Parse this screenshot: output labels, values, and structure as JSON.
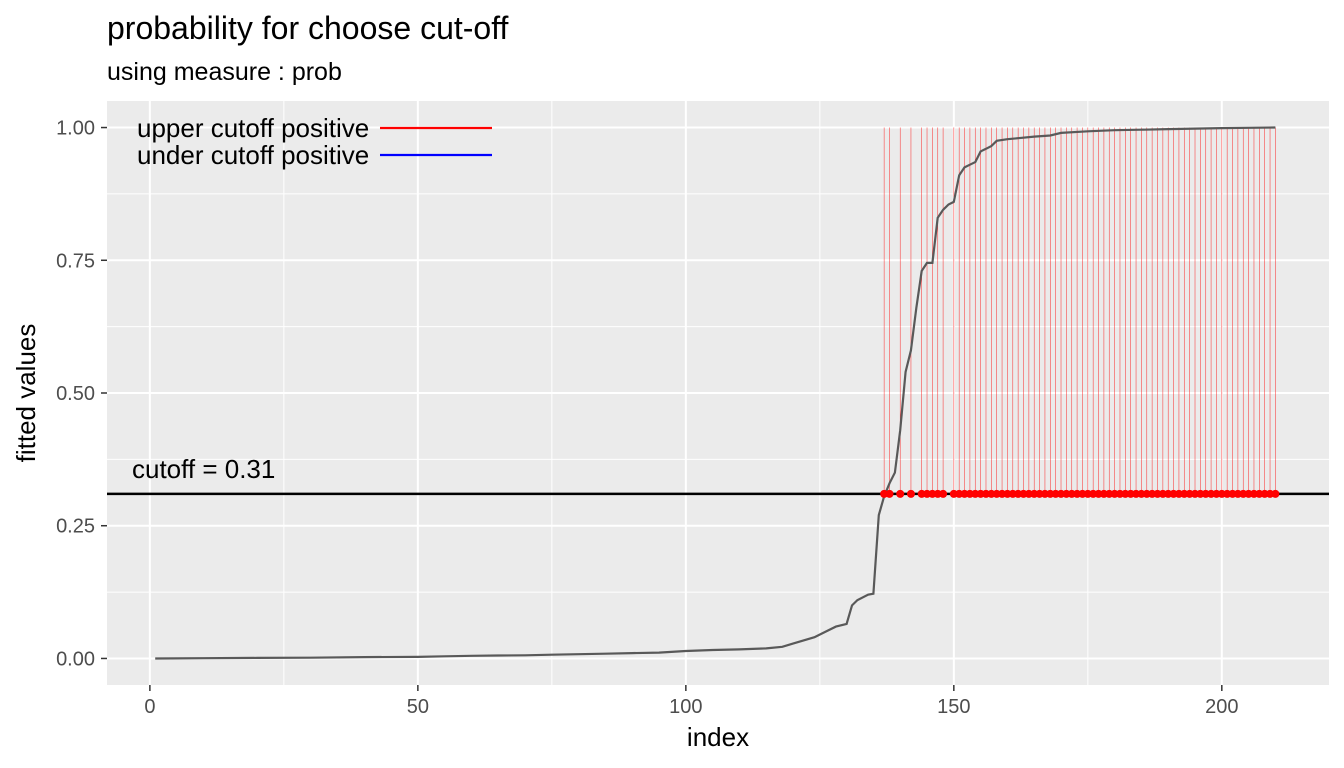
{
  "chart_data": {
    "type": "line",
    "title": "probability for choose cut-off",
    "subtitle": "using measure : prob",
    "xlabel": "index",
    "ylabel": "fitted values",
    "xlim": [
      -8,
      220
    ],
    "ylim": [
      -0.05,
      1.05
    ],
    "x_ticks": [
      0,
      50,
      100,
      150,
      200
    ],
    "y_ticks": [
      0.0,
      0.25,
      0.5,
      0.75,
      1.0
    ],
    "x_tick_labels": [
      "0",
      "50",
      "100",
      "150",
      "200"
    ],
    "y_tick_labels": [
      "0.00",
      "0.25",
      "0.50",
      "0.75",
      "1.00"
    ],
    "grid": true,
    "legend_placement": "top-left",
    "legend": [
      {
        "label": "upper cutoff positive",
        "color": "#ff0000"
      },
      {
        "label": "under cutoff positive",
        "color": "#0000ff"
      }
    ],
    "cutoff": {
      "value": 0.31,
      "label": "cutoff = 0.31",
      "color": "#000000"
    },
    "line_color": "#595959",
    "marker_color": "#ff0000",
    "series": [
      {
        "x": [
          1,
          10,
          20,
          30,
          40,
          50,
          55,
          60,
          65,
          70,
          75,
          80,
          85,
          90,
          95,
          100,
          105,
          110,
          115,
          118,
          120,
          124,
          126,
          128,
          130,
          131,
          132,
          134,
          135,
          136,
          137,
          138,
          139,
          140,
          141,
          142,
          143,
          144,
          145,
          146,
          147,
          148,
          149,
          150,
          151,
          152,
          153,
          154,
          155,
          156,
          157,
          158,
          160,
          162,
          165,
          168,
          170,
          175,
          180,
          185,
          190,
          195,
          200,
          205,
          210
        ],
        "y": [
          0.0,
          0.0005,
          0.001,
          0.0015,
          0.0025,
          0.003,
          0.004,
          0.005,
          0.0055,
          0.006,
          0.007,
          0.008,
          0.009,
          0.01,
          0.011,
          0.014,
          0.016,
          0.017,
          0.019,
          0.022,
          0.028,
          0.04,
          0.05,
          0.06,
          0.065,
          0.1,
          0.11,
          0.12,
          0.122,
          0.27,
          0.305,
          0.33,
          0.35,
          0.43,
          0.54,
          0.58,
          0.66,
          0.73,
          0.745,
          0.745,
          0.83,
          0.845,
          0.855,
          0.86,
          0.91,
          0.925,
          0.93,
          0.935,
          0.955,
          0.96,
          0.965,
          0.975,
          0.978,
          0.98,
          0.983,
          0.985,
          0.99,
          0.993,
          0.995,
          0.996,
          0.997,
          0.998,
          0.999,
          0.9995,
          1.0
        ]
      }
    ],
    "positive_indices": [
      137,
      138,
      140,
      142,
      144,
      145,
      146,
      147,
      148,
      150,
      151,
      152,
      153,
      154,
      155,
      156,
      157,
      158,
      159,
      160,
      161,
      162,
      163,
      164,
      165,
      166,
      167,
      168,
      169,
      170,
      171,
      172,
      173,
      174,
      175,
      176,
      177,
      178,
      179,
      180,
      181,
      182,
      183,
      184,
      185,
      186,
      187,
      188,
      189,
      190,
      191,
      192,
      193,
      194,
      195,
      196,
      197,
      198,
      199,
      200,
      201,
      202,
      203,
      204,
      205,
      206,
      207,
      208,
      209,
      210
    ]
  }
}
